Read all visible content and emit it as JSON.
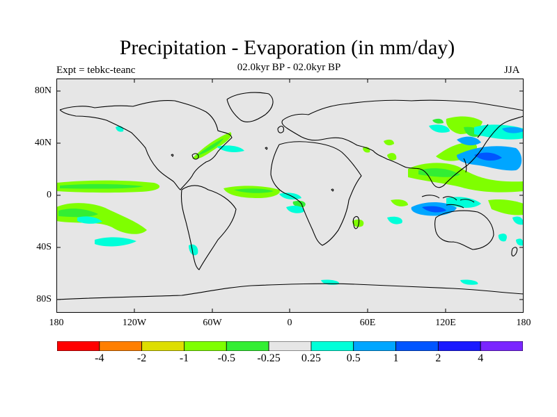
{
  "title": "Precipitation - Evaporation (in mm/day)",
  "subtitle": "02.0kyr BP - 02.0kyr BP",
  "expt_label": "Expt = tebkc-teanc",
  "season": "JJA",
  "y_ticks": [
    "80N",
    "40N",
    "0",
    "40S",
    "80S"
  ],
  "x_ticks": [
    "180",
    "120W",
    "60W",
    "0",
    "60E",
    "120E",
    "180"
  ],
  "colorbar": {
    "labels": [
      "-4",
      "-2",
      "-1",
      "-0.5",
      "-0.25",
      "0.25",
      "0.5",
      "1",
      "2",
      "4"
    ],
    "colors": [
      "#ff0000",
      "#ff7f00",
      "#dede00",
      "#7fff00",
      "#33ee33",
      "#e6e6e6",
      "#00ffd9",
      "#00a6ff",
      "#0055ff",
      "#1a1aff",
      "#7b26ff"
    ]
  },
  "colors": {
    "land_ocean_background": "#e6e6e6",
    "coastline": "#000000"
  }
}
